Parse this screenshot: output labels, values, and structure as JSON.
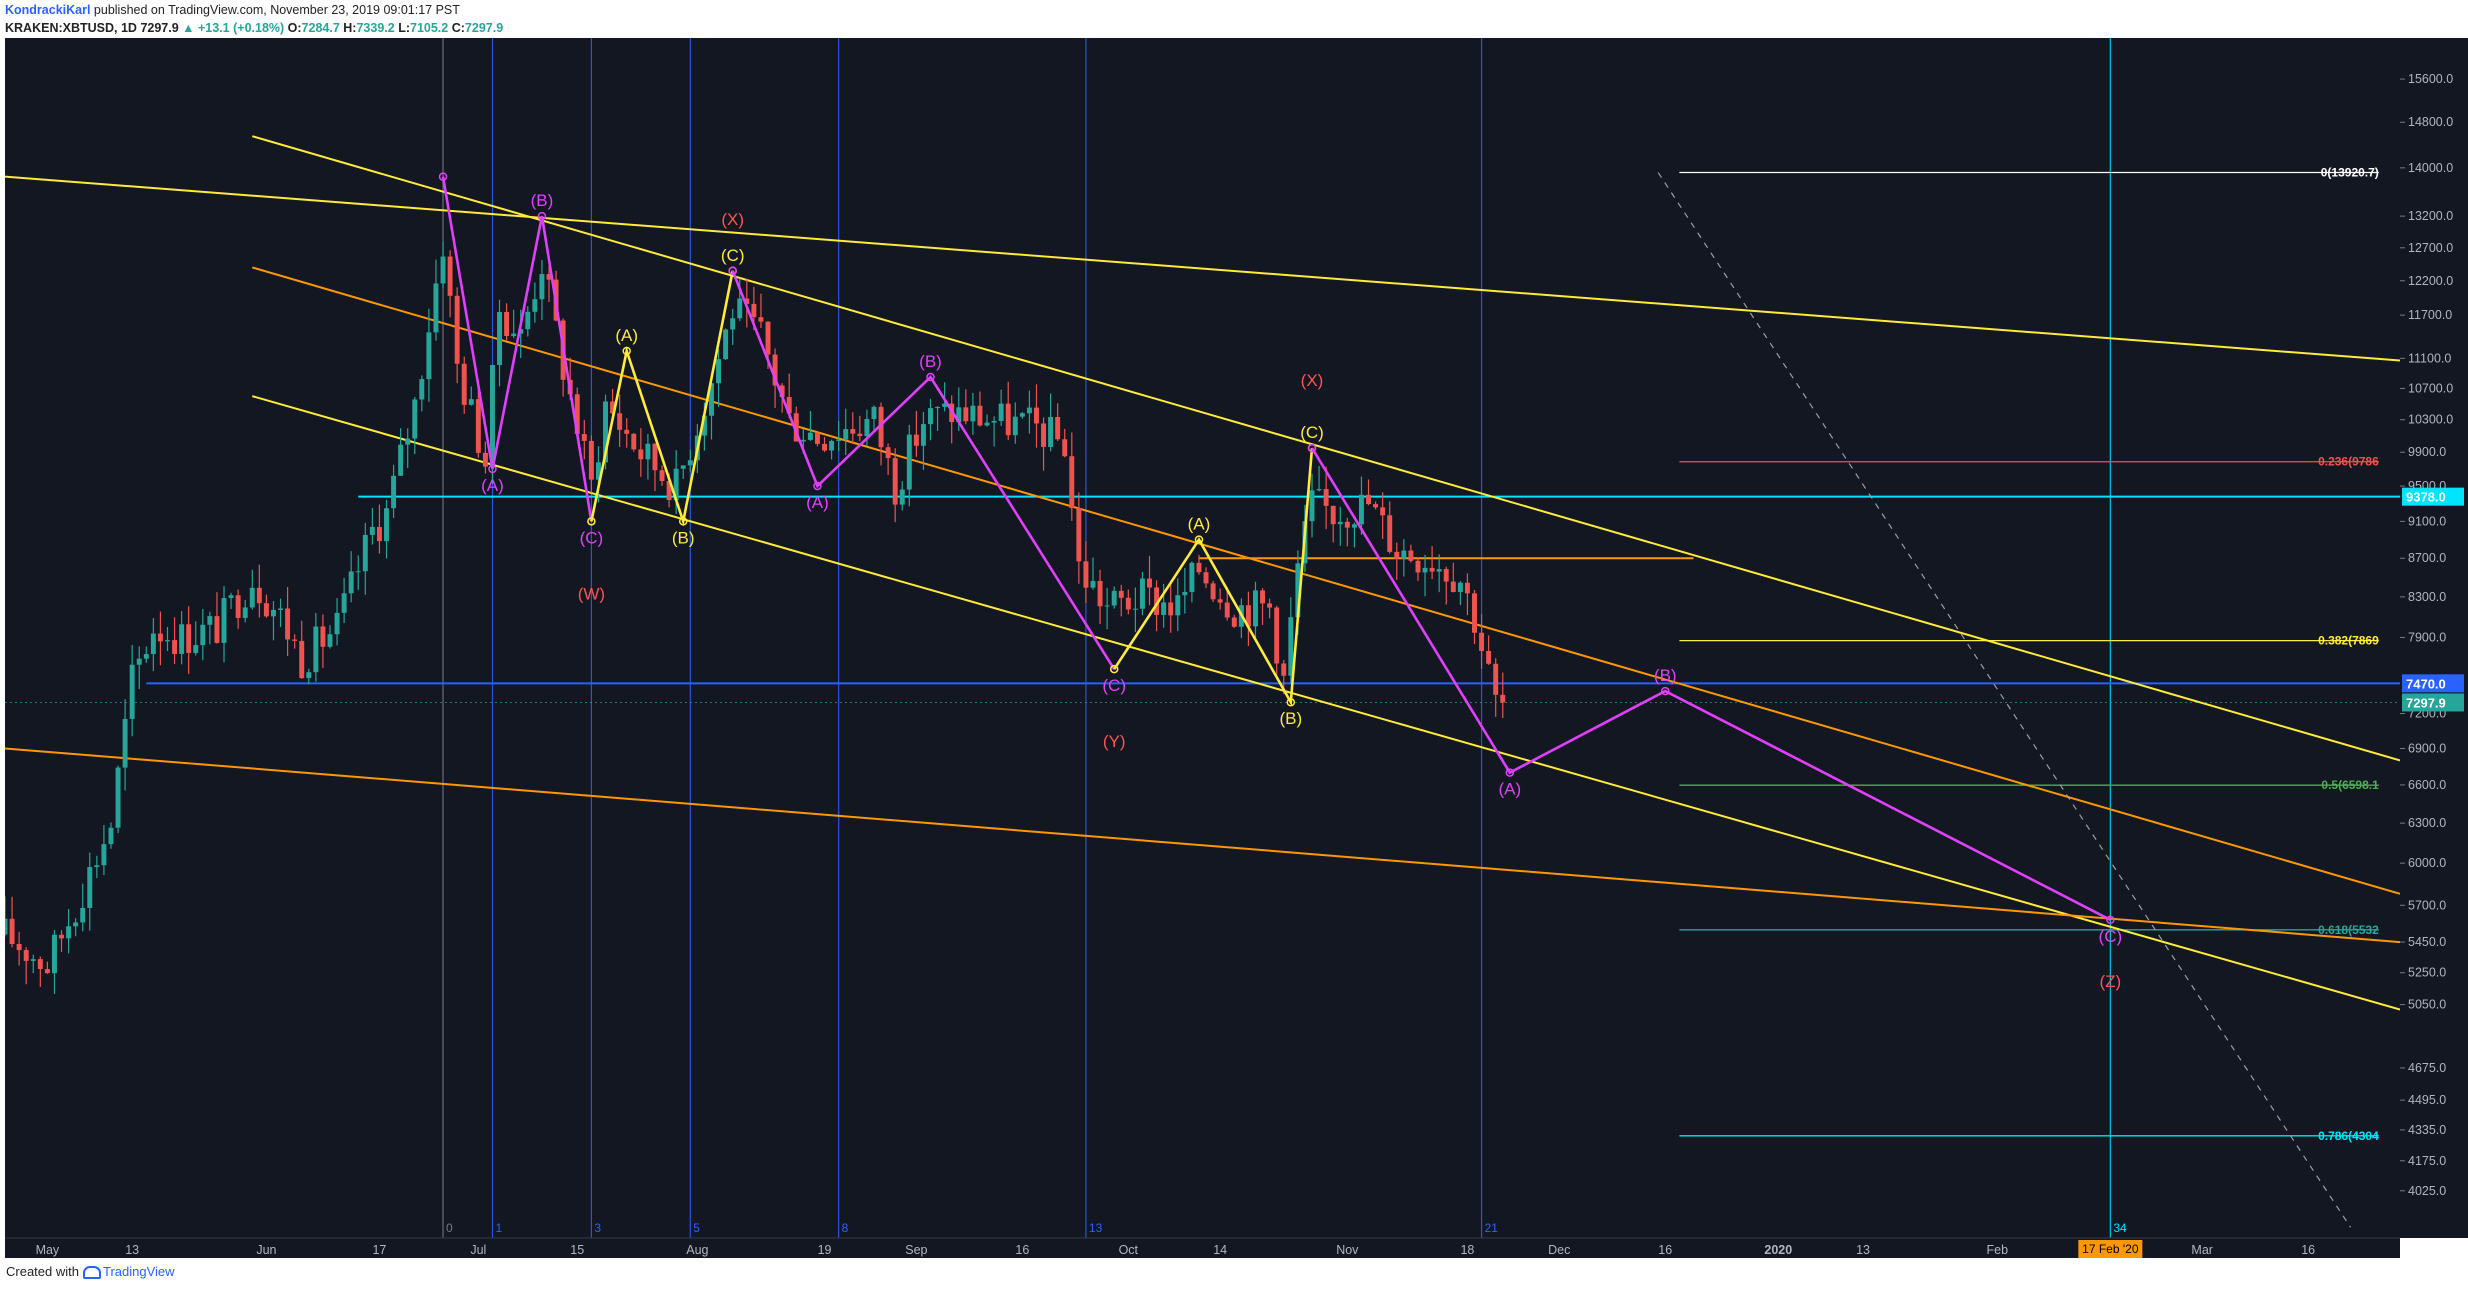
{
  "header": {
    "author": "KondrackiKarl",
    "published": " published on TradingView.com, November 23, 2019 09:01:17 PST",
    "symbol": "KRAKEN:XBTUSD, 1D",
    "last": "7297.9",
    "change": "▲ +13.1 (+0.18%)",
    "o_label": "O:",
    "o": "7284.7",
    "h_label": "H:",
    "h": "7339.2",
    "l_label": "L:",
    "l": "7105.2",
    "c_label": "C:",
    "c": "7297.9"
  },
  "footer": {
    "created": "Created with",
    "brand": "TradingView"
  },
  "colors": {
    "background": "#131722",
    "up": "#26a69a",
    "down": "#ef5350",
    "yellow": "#ffeb3b",
    "magenta": "#e040fb",
    "cyan": "#00e5ff",
    "blue": "#2962ff",
    "orange": "#ff9800",
    "pink": "#ff5252"
  },
  "chart_data": {
    "type": "candlestick",
    "y_scale": "log",
    "ylim": [
      3800,
      16400
    ],
    "y_ticks": [
      "15600.0",
      "14800.0",
      "14000.0",
      "13200.0",
      "12700.0",
      "12200.0",
      "11700.0",
      "11100.0",
      "10700.0",
      "10300.0",
      "9900.0",
      "9500.0",
      "9100.0",
      "8700.0",
      "8300.0",
      "7900.0",
      "7200.0",
      "6900.0",
      "6600.0",
      "6300.0",
      "6000.0",
      "5700.0",
      "5450.0",
      "5250.0",
      "5050.0",
      "4675.0",
      "4495.0",
      "4335.0",
      "4175.0",
      "4025.0"
    ],
    "x_range": [
      "2019-04-25",
      "2020-03-29"
    ],
    "x_ticks": [
      {
        "date": "2019-05-01",
        "label": "May"
      },
      {
        "date": "2019-05-13",
        "label": "13"
      },
      {
        "date": "2019-06-01",
        "label": "Jun"
      },
      {
        "date": "2019-06-17",
        "label": "17"
      },
      {
        "date": "2019-07-01",
        "label": "Jul"
      },
      {
        "date": "2019-07-15",
        "label": "15"
      },
      {
        "date": "2019-08-01",
        "label": "Aug"
      },
      {
        "date": "2019-08-19",
        "label": "19"
      },
      {
        "date": "2019-09-01",
        "label": "Sep"
      },
      {
        "date": "2019-09-16",
        "label": "16"
      },
      {
        "date": "2019-10-01",
        "label": "Oct"
      },
      {
        "date": "2019-10-14",
        "label": "14"
      },
      {
        "date": "2019-11-01",
        "label": "Nov"
      },
      {
        "date": "2019-11-18",
        "label": "18"
      },
      {
        "date": "2019-12-01",
        "label": "Dec"
      },
      {
        "date": "2019-12-16",
        "label": "16"
      },
      {
        "date": "2020-01-01",
        "label": "2020"
      },
      {
        "date": "2020-01-13",
        "label": "13"
      },
      {
        "date": "2020-02-01",
        "label": "Feb"
      },
      {
        "date": "2020-03-01",
        "label": "Mar"
      },
      {
        "date": "2020-03-16",
        "label": "16"
      }
    ],
    "price_path": [
      [
        "2019-04-25",
        5500
      ],
      [
        "2019-05-01",
        5300
      ],
      [
        "2019-05-05",
        5700
      ],
      [
        "2019-05-10",
        6300
      ],
      [
        "2019-05-13",
        7500
      ],
      [
        "2019-05-16",
        8000
      ],
      [
        "2019-05-20",
        7900
      ],
      [
        "2019-05-25",
        8000
      ],
      [
        "2019-05-30",
        8500
      ],
      [
        "2019-06-03",
        8100
      ],
      [
        "2019-06-06",
        7700
      ],
      [
        "2019-06-11",
        8000
      ],
      [
        "2019-06-16",
        9000
      ],
      [
        "2019-06-18",
        9200
      ],
      [
        "2019-06-22",
        10500
      ],
      [
        "2019-06-26",
        12800
      ],
      [
        "2019-06-28",
        11000
      ],
      [
        "2019-07-02",
        9800
      ],
      [
        "2019-07-04",
        11800
      ],
      [
        "2019-07-07",
        11400
      ],
      [
        "2019-07-10",
        12500
      ],
      [
        "2019-07-13",
        11000
      ],
      [
        "2019-07-17",
        9500
      ],
      [
        "2019-07-19",
        10500
      ],
      [
        "2019-07-24",
        9900
      ],
      [
        "2019-07-29",
        9500
      ],
      [
        "2019-08-03",
        10800
      ],
      [
        "2019-08-06",
        11800
      ],
      [
        "2019-08-10",
        11400
      ],
      [
        "2019-08-14",
        10300
      ],
      [
        "2019-08-18",
        10100
      ],
      [
        "2019-08-22",
        10200
      ],
      [
        "2019-08-26",
        10300
      ],
      [
        "2019-08-29",
        9500
      ],
      [
        "2019-09-02",
        10300
      ],
      [
        "2019-09-06",
        10400
      ],
      [
        "2019-09-12",
        10300
      ],
      [
        "2019-09-18",
        10200
      ],
      [
        "2019-09-22",
        10000
      ],
      [
        "2019-09-24",
        8600
      ],
      [
        "2019-09-28",
        8200
      ],
      [
        "2019-10-03",
        8300
      ],
      [
        "2019-10-08",
        8200
      ],
      [
        "2019-10-11",
        8600
      ],
      [
        "2019-10-16",
        8200
      ],
      [
        "2019-10-21",
        8200
      ],
      [
        "2019-10-23",
        7500
      ],
      [
        "2019-10-25",
        8600
      ],
      [
        "2019-10-27",
        9300
      ],
      [
        "2019-10-30",
        9200
      ],
      [
        "2019-11-04",
        9300
      ],
      [
        "2019-11-08",
        8800
      ],
      [
        "2019-11-13",
        8700
      ],
      [
        "2019-11-17",
        8500
      ],
      [
        "2019-11-19",
        8100
      ],
      [
        "2019-11-22",
        7300
      ],
      [
        "2019-11-23",
        7297.9
      ]
    ],
    "horizontal_lines": [
      {
        "price": 9378.0,
        "label": "9378.0",
        "color": "#00e5ff",
        "from": "2019-06-14"
      },
      {
        "price": 7470.0,
        "label": "7470.0",
        "color": "#2962ff",
        "from": "2019-05-15"
      },
      {
        "price": 8700,
        "color": "#ff9800",
        "from": "2019-10-11",
        "to": "2019-12-20"
      }
    ],
    "last_price": {
      "price": 7297.9,
      "label": "7297.9"
    },
    "fibonacci": [
      {
        "price": 13920.7,
        "label": "0(13920.7)",
        "color": "#ffffff"
      },
      {
        "price": 9786,
        "label": "0.236(9786",
        "color": "#ef5350"
      },
      {
        "price": 7869,
        "label": "0.382(7869",
        "color": "#ffeb3b"
      },
      {
        "price": 6598.1,
        "label": "0.5(6598.1",
        "color": "#4caf50"
      },
      {
        "price": 5532,
        "label": "0.618(5532",
        "color": "#26a69a"
      },
      {
        "price": 4304,
        "label": "0.786(4304",
        "color": "#00e5ff"
      }
    ],
    "fib_from": "2019-12-18",
    "fib_to": "2020-03-26",
    "trendlines": [
      {
        "points": [
          [
            "2019-04-25",
            13850
          ],
          [
            "2020-03-29",
            11070
          ]
        ],
        "color": "#ffeb3b"
      },
      {
        "points": [
          [
            "2019-05-30",
            14550
          ],
          [
            "2020-03-29",
            6800
          ]
        ],
        "color": "#ffeb3b"
      },
      {
        "points": [
          [
            "2019-05-30",
            10600
          ],
          [
            "2020-03-29",
            5020
          ]
        ],
        "color": "#ffeb3b"
      },
      {
        "points": [
          [
            "2019-05-30",
            12400
          ],
          [
            "2020-03-29",
            5780
          ]
        ],
        "color": "#ff9800"
      },
      {
        "points": [
          [
            "2019-04-25",
            6900
          ],
          [
            "2020-03-29",
            5450
          ]
        ],
        "color": "#ff9800"
      },
      {
        "points": [
          [
            "2019-12-15",
            13920
          ],
          [
            "2020-03-22",
            3850
          ]
        ],
        "color": "#9e9e9e",
        "dashed": true
      }
    ],
    "wave_paths": [
      {
        "color": "#e040fb",
        "points": [
          [
            "2019-06-26",
            13850
          ],
          [
            "2019-07-03",
            9700
          ],
          [
            "2019-07-10",
            13200
          ],
          [
            "2019-07-17",
            9100
          ]
        ]
      },
      {
        "color": "#ffeb3b",
        "points": [
          [
            "2019-07-17",
            9100
          ],
          [
            "2019-07-22",
            11200
          ],
          [
            "2019-07-30",
            9100
          ],
          [
            "2019-08-06",
            12350
          ]
        ]
      },
      {
        "color": "#e040fb",
        "points": [
          [
            "2019-08-06",
            12350
          ],
          [
            "2019-08-18",
            9500
          ],
          [
            "2019-09-03",
            10850
          ],
          [
            "2019-09-29",
            7600
          ]
        ]
      },
      {
        "color": "#ffeb3b",
        "points": [
          [
            "2019-09-29",
            7600
          ],
          [
            "2019-10-11",
            8900
          ],
          [
            "2019-10-24",
            7300
          ],
          [
            "2019-10-27",
            9950
          ]
        ]
      },
      {
        "color": "#e040fb",
        "points": [
          [
            "2019-10-27",
            9950
          ],
          [
            "2019-11-24",
            6700
          ],
          [
            "2019-12-16",
            7400
          ],
          [
            "2020-02-17",
            5600
          ]
        ]
      }
    ],
    "wave_labels": [
      {
        "date": "2019-07-03",
        "price": 9700,
        "text": "(A)",
        "color": "#e040fb",
        "pos": "below"
      },
      {
        "date": "2019-07-10",
        "price": 13200,
        "text": "(B)",
        "color": "#e040fb",
        "pos": "above"
      },
      {
        "date": "2019-07-17",
        "price": 9100,
        "text": "(C)",
        "color": "#e040fb",
        "pos": "below"
      },
      {
        "date": "2019-07-17",
        "price": 8500,
        "text": "(W)",
        "color": "#ff5252",
        "pos": "below"
      },
      {
        "date": "2019-07-22",
        "price": 11200,
        "text": "(A)",
        "color": "#ffeb3b",
        "pos": "above"
      },
      {
        "date": "2019-07-30",
        "price": 9100,
        "text": "(B)",
        "color": "#ffeb3b",
        "pos": "below"
      },
      {
        "date": "2019-08-06",
        "price": 12900,
        "text": "(X)",
        "color": "#ff5252",
        "pos": "above"
      },
      {
        "date": "2019-08-06",
        "price": 12350,
        "text": "(C)",
        "color": "#ffeb3b",
        "pos": "above"
      },
      {
        "date": "2019-08-18",
        "price": 9500,
        "text": "(A)",
        "color": "#e040fb",
        "pos": "below"
      },
      {
        "date": "2019-09-03",
        "price": 10850,
        "text": "(B)",
        "color": "#e040fb",
        "pos": "above"
      },
      {
        "date": "2019-09-29",
        "price": 7600,
        "text": "(C)",
        "color": "#e040fb",
        "pos": "below"
      },
      {
        "date": "2019-09-29",
        "price": 7100,
        "text": "(Y)",
        "color": "#ff5252",
        "pos": "below"
      },
      {
        "date": "2019-10-11",
        "price": 8900,
        "text": "(A)",
        "color": "#ffeb3b",
        "pos": "above"
      },
      {
        "date": "2019-10-24",
        "price": 7300,
        "text": "(B)",
        "color": "#ffeb3b",
        "pos": "below"
      },
      {
        "date": "2019-10-27",
        "price": 10600,
        "text": "(X)",
        "color": "#ff5252",
        "pos": "above"
      },
      {
        "date": "2019-10-27",
        "price": 9950,
        "text": "(C)",
        "color": "#ffeb3b",
        "pos": "above"
      },
      {
        "date": "2019-11-24",
        "price": 6700,
        "text": "(A)",
        "color": "#e040fb",
        "pos": "below"
      },
      {
        "date": "2019-12-16",
        "price": 7400,
        "text": "(B)",
        "color": "#e040fb",
        "pos": "above"
      },
      {
        "date": "2020-02-17",
        "price": 5600,
        "text": "(C)",
        "color": "#e040fb",
        "pos": "below"
      },
      {
        "date": "2020-02-17",
        "price": 5300,
        "text": "(Z)",
        "color": "#ff5252",
        "pos": "below"
      }
    ],
    "time_cycle_lines": [
      {
        "date": "2019-06-26",
        "label": "0",
        "color": "#787b86"
      },
      {
        "date": "2019-07-03",
        "label": "1",
        "color": "#2962ff"
      },
      {
        "date": "2019-07-17",
        "label": "3",
        "color": "#2962ff"
      },
      {
        "date": "2019-07-31",
        "label": "5",
        "color": "#2962ff"
      },
      {
        "date": "2019-08-21",
        "label": "8",
        "color": "#2962ff"
      },
      {
        "date": "2019-09-25",
        "label": "13",
        "color": "#2962ff"
      },
      {
        "date": "2019-11-20",
        "label": "21",
        "color": "#2962ff"
      },
      {
        "date": "2020-02-17",
        "label": "34",
        "color": "#00e5ff"
      }
    ],
    "time_marker": {
      "date": "2020-02-17",
      "label": "17 Feb '20"
    }
  }
}
